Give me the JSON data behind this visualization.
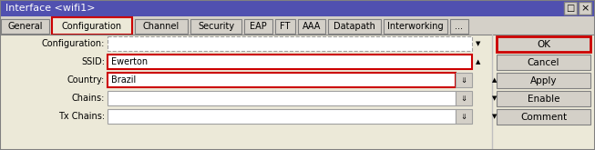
{
  "title": "Interface <wifi1>",
  "title_bg": "#5050b0",
  "title_fg": "#ffffff",
  "tab_labels": [
    "General",
    "Configuration",
    "Channel",
    "Security",
    "EAP",
    "FT",
    "AAA",
    "Datapath",
    "Interworking",
    "..."
  ],
  "active_tab": 1,
  "fields": [
    {
      "label": "Configuration:",
      "value": "",
      "dashed": true,
      "highlight": false,
      "dropdown": true,
      "up_arrow": false
    },
    {
      "label": "SSID:",
      "value": "Ewerton",
      "dashed": false,
      "highlight": true,
      "dropdown": false,
      "up_arrow": true
    },
    {
      "label": "Country:",
      "value": "Brazil",
      "dashed": false,
      "highlight": true,
      "dropdown": true,
      "up_arrow": true
    },
    {
      "label": "Chains:",
      "value": "",
      "dashed": false,
      "highlight": false,
      "dropdown": true,
      "up_arrow": false
    },
    {
      "label": "Tx Chains:",
      "value": "",
      "dashed": false,
      "highlight": false,
      "dropdown": true,
      "up_arrow": false
    }
  ],
  "buttons": [
    "OK",
    "Cancel",
    "Apply",
    "Enable",
    "Comment"
  ],
  "ok_highlight": true,
  "bg_color": "#d4d0c8",
  "dialog_bg": "#ece9d8",
  "field_bg": "#ffffff",
  "field_border": "#a0a0a0",
  "highlight_color": "#cc0000",
  "button_bg": "#d4d0c8",
  "button_border": "#808080",
  "tab_active_bg": "#ece9d8",
  "tab_inactive_bg": "#d4d0c8",
  "tab_border": "#808080",
  "figw": 6.53,
  "figh": 1.65,
  "dpi": 100
}
